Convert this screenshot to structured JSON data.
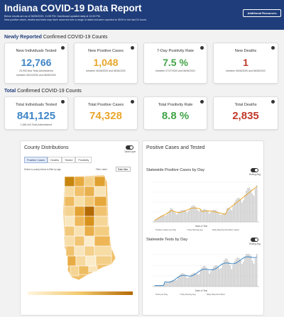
{
  "header": {
    "title": "Indiana COVID-19 Data Report",
    "subtitle_line1": "Below results are as of 06/06/2020, 11:59 PM. Dashboard updated daily at 12:00 PM.",
    "subtitle_line2": "New positive cases, deaths and tests may have occurred over a range of dates but were reported to ISDH in the last 24 hours.",
    "additional_resources": "Additional Resources"
  },
  "new_section": {
    "bold": "Newly Reported",
    "rest": " Confirmed COVID-19 Counts"
  },
  "new_cards": [
    {
      "label": "New Individuals Tested",
      "value": "12,766",
      "color": "#3f86c6",
      "note1": "23,905 New Tests Administered",
      "note2": "between 06/10/2020 and 06/06/2020"
    },
    {
      "label": "New Positive Cases",
      "value": "1,048",
      "color": "#e8a62a",
      "note1": "between 06/06/2020 and 06/06/2020",
      "note2": ""
    },
    {
      "label": "7-Day Positivity Rate",
      "value": "7.5 %",
      "color": "#43a347",
      "note1": "between 07/27/2020 and 06/06/2020",
      "note2": ""
    },
    {
      "label": "New Deaths",
      "value": "1",
      "color": "#c0392b",
      "note1": "between 06/06/2020 and 06/06/2020",
      "note2": ""
    }
  ],
  "total_section": {
    "bold": "Total",
    "rest": " Confirmed COVID-19 Counts"
  },
  "total_cards": [
    {
      "label": "Total Individuals Tested",
      "value": "841,125",
      "color": "#3f86c6",
      "note1": "1,369,444 Tests Administered"
    },
    {
      "label": "Total Positive Cases",
      "value": "74,328",
      "color": "#e8a62a",
      "note1": ""
    },
    {
      "label": "Total Positivity Rate",
      "value": "8.8 %",
      "color": "#43a347",
      "note1": ""
    },
    {
      "label": "Total Deaths",
      "value": "2,835",
      "color": "#c0392b",
      "note1": ""
    }
  ],
  "county_panel": {
    "title": "County Distributions",
    "toggle_label": "Table/Layer",
    "tabs": [
      "Positive Cases",
      "Deaths",
      "Tested",
      "Positivity"
    ],
    "instruction": "Select a county below to filter by age",
    "filter_label": "Filter Label",
    "filter_value": "Rate filter"
  },
  "trends_panel": {
    "title": "Positive Cases and Tested",
    "chart1_title": "Statewide Positive Cases by Day",
    "chart1_toggle": "Rolling Avg",
    "chart1_xlabel": "Date of Test",
    "chart2_title": "Statewide Tests by Day",
    "chart2_toggle": "Rolling Avg",
    "chart2_xlabel": "Date of Test",
    "legend_cases": [
      "Positive Cases per Day",
      "7 Day Moving Avg",
      "Daily Reported Positive Cases"
    ],
    "legend_tests": [
      "Tests per Day",
      "7 Day Moving Avg",
      "Daily Reported Tests"
    ]
  },
  "colors": {
    "header_bg": "#1f3d7a",
    "blue": "#3f86c6",
    "orange": "#e8a62a",
    "green": "#43a347",
    "red": "#c0392b"
  }
}
